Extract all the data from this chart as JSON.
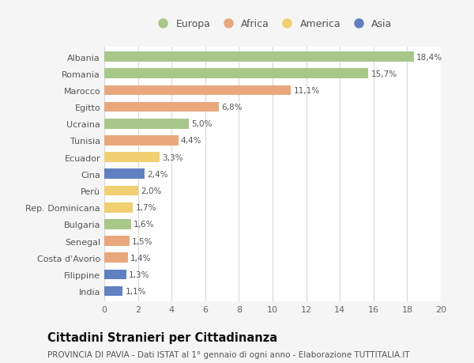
{
  "categories": [
    "Albania",
    "Romania",
    "Marocco",
    "Egitto",
    "Ucraina",
    "Tunisia",
    "Ecuador",
    "Cina",
    "Perù",
    "Rep. Dominicana",
    "Bulgaria",
    "Senegal",
    "Costa d'Avorio",
    "Filippine",
    "India"
  ],
  "values": [
    18.4,
    15.7,
    11.1,
    6.8,
    5.0,
    4.4,
    3.3,
    2.4,
    2.0,
    1.7,
    1.6,
    1.5,
    1.4,
    1.3,
    1.1
  ],
  "labels": [
    "18,4%",
    "15,7%",
    "11,1%",
    "6,8%",
    "5,0%",
    "4,4%",
    "3,3%",
    "2,4%",
    "2,0%",
    "1,7%",
    "1,6%",
    "1,5%",
    "1,4%",
    "1,3%",
    "1,1%"
  ],
  "regions": [
    "Europa",
    "Europa",
    "Africa",
    "Africa",
    "Europa",
    "Africa",
    "America",
    "Asia",
    "America",
    "America",
    "Europa",
    "Africa",
    "Africa",
    "Asia",
    "Asia"
  ],
  "colors": {
    "Europa": "#a8c88a",
    "Africa": "#e8a87c",
    "America": "#f0d070",
    "Asia": "#6080c0"
  },
  "legend_order": [
    "Europa",
    "Africa",
    "America",
    "Asia"
  ],
  "title": "Cittadini Stranieri per Cittadinanza",
  "subtitle": "PROVINCIA DI PAVIA - Dati ISTAT al 1° gennaio di ogni anno - Elaborazione TUTTITALIA.IT",
  "xlim": [
    0,
    20
  ],
  "xticks": [
    0,
    2,
    4,
    6,
    8,
    10,
    12,
    14,
    16,
    18,
    20
  ],
  "bg_color": "#f5f5f5",
  "plot_bg_color": "#ffffff",
  "grid_color": "#d8d8d8",
  "bar_height": 0.6,
  "title_fontsize": 10.5,
  "subtitle_fontsize": 7.5,
  "label_fontsize": 7.5,
  "tick_fontsize": 8,
  "legend_fontsize": 9
}
